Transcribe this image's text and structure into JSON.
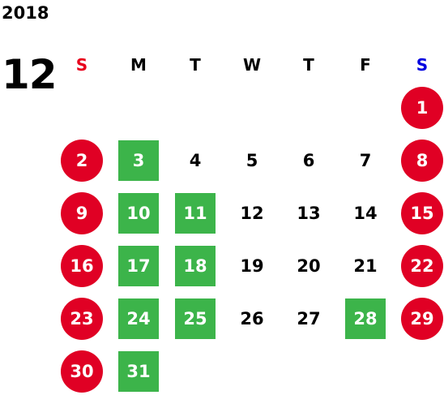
{
  "calendar": {
    "year": "2018",
    "month": "12",
    "weekdays": [
      {
        "label": "S",
        "kind": "sun"
      },
      {
        "label": "M",
        "kind": "mon"
      },
      {
        "label": "T",
        "kind": "tue"
      },
      {
        "label": "W",
        "kind": "wed"
      },
      {
        "label": "T",
        "kind": "thu"
      },
      {
        "label": "F",
        "kind": "fri"
      },
      {
        "label": "S",
        "kind": "sat"
      }
    ],
    "weeks": [
      [
        null,
        null,
        null,
        null,
        null,
        null,
        {
          "day": "1",
          "style": "weekend"
        }
      ],
      [
        {
          "day": "2",
          "style": "weekend"
        },
        {
          "day": "3",
          "style": "hl"
        },
        {
          "day": "4",
          "style": "plain"
        },
        {
          "day": "5",
          "style": "plain"
        },
        {
          "day": "6",
          "style": "plain"
        },
        {
          "day": "7",
          "style": "plain"
        },
        {
          "day": "8",
          "style": "weekend"
        }
      ],
      [
        {
          "day": "9",
          "style": "weekend"
        },
        {
          "day": "10",
          "style": "hl"
        },
        {
          "day": "11",
          "style": "hl"
        },
        {
          "day": "12",
          "style": "plain"
        },
        {
          "day": "13",
          "style": "plain"
        },
        {
          "day": "14",
          "style": "plain"
        },
        {
          "day": "15",
          "style": "weekend"
        }
      ],
      [
        {
          "day": "16",
          "style": "weekend"
        },
        {
          "day": "17",
          "style": "hl"
        },
        {
          "day": "18",
          "style": "hl"
        },
        {
          "day": "19",
          "style": "plain"
        },
        {
          "day": "20",
          "style": "plain"
        },
        {
          "day": "21",
          "style": "plain"
        },
        {
          "day": "22",
          "style": "weekend"
        }
      ],
      [
        {
          "day": "23",
          "style": "weekend"
        },
        {
          "day": "24",
          "style": "hl"
        },
        {
          "day": "25",
          "style": "hl"
        },
        {
          "day": "26",
          "style": "plain"
        },
        {
          "day": "27",
          "style": "plain"
        },
        {
          "day": "28",
          "style": "hl"
        },
        {
          "day": "29",
          "style": "weekend"
        }
      ],
      [
        {
          "day": "30",
          "style": "weekend"
        },
        {
          "day": "31",
          "style": "hl"
        },
        null,
        null,
        null,
        null,
        null
      ]
    ]
  },
  "colors": {
    "sunday_header": "#e8001c",
    "saturday_header": "#0000e0",
    "weekend_circle": "#e00024",
    "highlight_square": "#3cb44a"
  }
}
